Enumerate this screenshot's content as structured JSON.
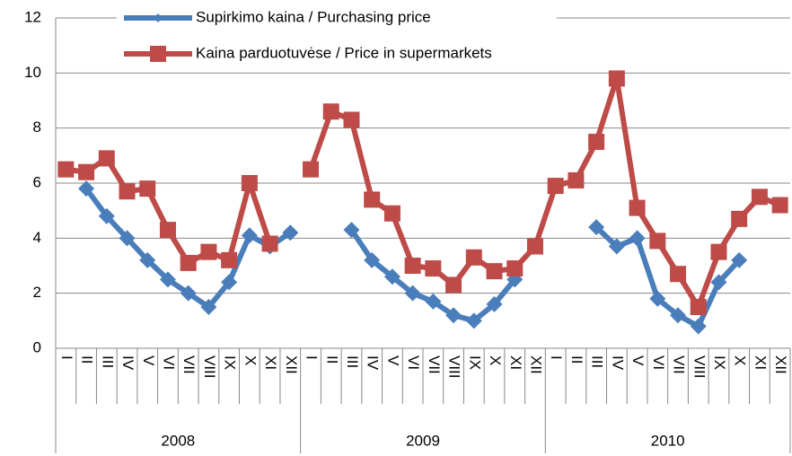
{
  "chart_data": {
    "type": "line",
    "categories": [
      "I",
      "II",
      "III",
      "IV",
      "V",
      "VI",
      "VII",
      "VIII",
      "IX",
      "X",
      "XI",
      "XII",
      "I",
      "II",
      "III",
      "IV",
      "V",
      "VI",
      "VII",
      "VIII",
      "IX",
      "X",
      "XI",
      "XII",
      "I",
      "II",
      "III",
      "IV",
      "V",
      "VI",
      "VII",
      "VIII",
      "IX",
      "X",
      "XI",
      "XII"
    ],
    "x_groups": [
      "2008",
      "2009",
      "2010"
    ],
    "series": [
      {
        "name": "Supirkimo kaina / Purchasing price",
        "color": "#4a7ebb",
        "marker": "diamond",
        "values": [
          null,
          5.8,
          4.8,
          4.0,
          3.2,
          2.5,
          2.0,
          1.5,
          2.4,
          4.1,
          3.7,
          4.2,
          null,
          null,
          4.3,
          3.2,
          2.6,
          2.0,
          1.7,
          1.2,
          1.0,
          1.6,
          2.5,
          null,
          null,
          null,
          4.4,
          3.7,
          4.0,
          1.8,
          1.2,
          0.8,
          2.4,
          3.2,
          null,
          null
        ]
      },
      {
        "name": "Kaina parduotuvėse / Price in supermarkets",
        "color": "#be4b48",
        "marker": "square",
        "values": [
          6.5,
          6.4,
          6.9,
          5.7,
          5.8,
          4.3,
          3.1,
          3.5,
          3.2,
          6.0,
          3.8,
          null,
          6.5,
          8.6,
          8.3,
          5.4,
          4.9,
          3.0,
          2.9,
          2.3,
          3.3,
          2.8,
          2.9,
          3.7,
          5.9,
          6.1,
          7.5,
          9.8,
          5.1,
          3.9,
          2.7,
          1.5,
          3.5,
          4.7,
          5.5,
          5.2
        ]
      }
    ],
    "ylim": [
      0,
      12
    ],
    "yticks": [
      0,
      2,
      4,
      6,
      8,
      10,
      12
    ],
    "grid": true
  }
}
